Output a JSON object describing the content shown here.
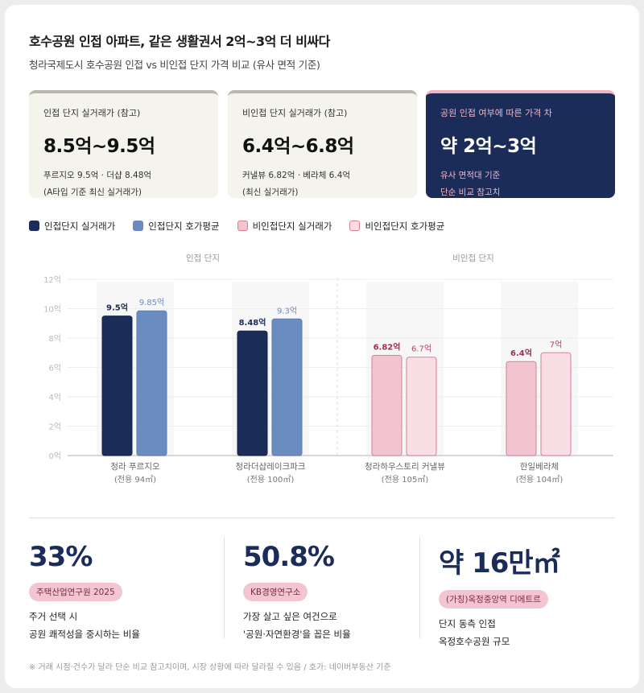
{
  "title": "호수공원 인접 아파트, 같은 생활권서 2억~3억 더 비싸다",
  "subtitle": "청라국제도시 호수공원 인접 vs 비인접 단지 가격 비교 (유사 면적 기준)",
  "cards": [
    {
      "label": "인접 단지 실거래가 (참고)",
      "value": "8.5억~9.5억",
      "line1": "푸르지오 9.5억 · 더샵 8.48억",
      "line2": "(A타입 기준 최신 실거래가)"
    },
    {
      "label": "비인접 단지 실거래가 (참고)",
      "value": "6.4억~6.8억",
      "line1": "커낼뷰 6.82억 · 베라체 6.4억",
      "line2": "(최신 실거래가)"
    },
    {
      "label": "공원 인접 여부에 따른 가격 차",
      "value": "약 2억~3억",
      "line1": "유사 면적대 기준",
      "line2": "단순 비교 참고치"
    }
  ],
  "chart_data": {
    "type": "bar",
    "groups": [
      "인접 단지",
      "비인접 단지"
    ],
    "categories": [
      "청라 푸르지오",
      "청라더샵레이크파크",
      "청라하우스토리 커낼뷰",
      "한일베라체"
    ],
    "category_sub": [
      "(전용 94㎡)",
      "(전용 100㎡)",
      "(전용 105㎡)",
      "(전용 104㎡)"
    ],
    "series": [
      {
        "name": "인접단지 실거래가",
        "values": [
          9.5,
          8.48,
          null,
          null
        ],
        "labels": [
          "9.5억",
          "8.48억",
          "",
          ""
        ],
        "color": "#1b2c58"
      },
      {
        "name": "인접단지 호가평균",
        "values": [
          9.85,
          9.3,
          null,
          null
        ],
        "labels": [
          "9.85억",
          "9.3억",
          "",
          ""
        ],
        "color": "#6b8cc0"
      },
      {
        "name": "비인접단지 실거래가",
        "values": [
          null,
          null,
          6.82,
          6.4
        ],
        "labels": [
          "",
          "",
          "6.82억",
          "6.4억"
        ],
        "color": "#f2c4cf"
      },
      {
        "name": "비인접단지 호가평균",
        "values": [
          null,
          null,
          6.7,
          7
        ],
        "labels": [
          "",
          "",
          "6.7억",
          "7억"
        ],
        "color": "#f9dfe5"
      }
    ],
    "yticks": [
      "0억",
      "2억",
      "4억",
      "6억",
      "8억",
      "10억",
      "12억"
    ],
    "ylim": [
      0,
      12
    ],
    "grid": true,
    "legend": "top-left"
  },
  "stats": [
    {
      "value": "33%",
      "source": "주택산업연구원 2025",
      "line1": "주거 선택 시",
      "line2": "공원 쾌적성을 중시하는 비율"
    },
    {
      "value": "50.8%",
      "source": "KB경영연구소",
      "line1": "가장 살고 싶은 여건으로",
      "line2": "'공원·자연환경'을 꼽은 비율"
    },
    {
      "value": "약 16만㎡",
      "source": "(가칭)옥정중앙역 디에트르",
      "line1": "단지 동측 인접",
      "line2": "옥정호수공원 규모"
    }
  ],
  "note": "※ 거래 시점·건수가 달라 단순 비교 참고치이며, 시장 상황에 따라 달라질 수 있음 / 호가: 네이버부동산 기준"
}
